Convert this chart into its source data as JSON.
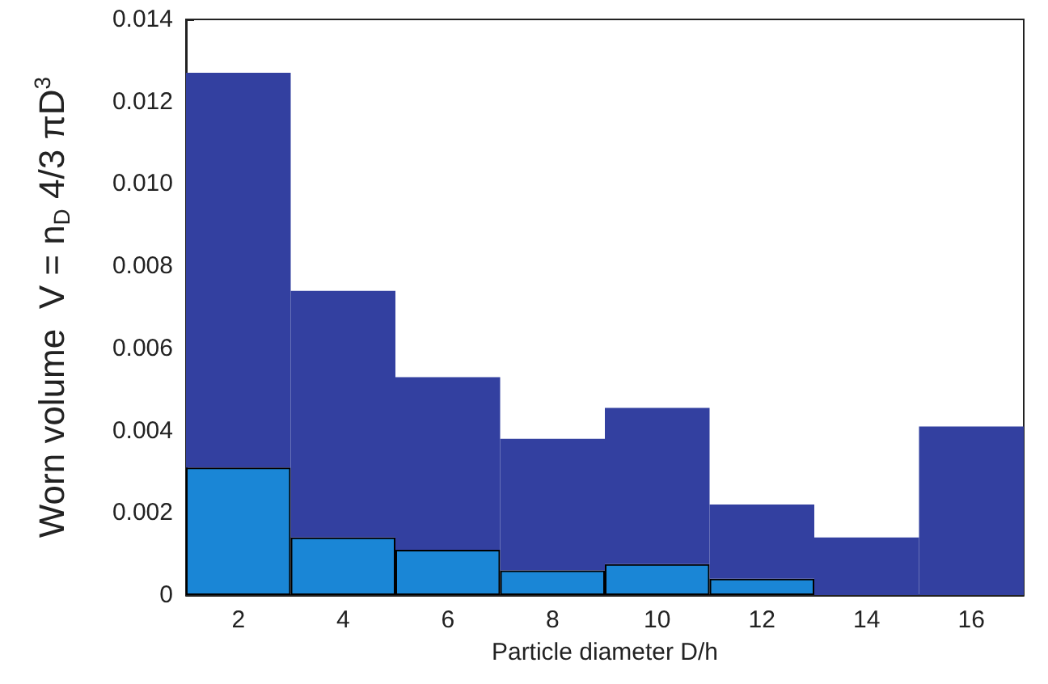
{
  "chart_data": {
    "type": "bar",
    "stacked": true,
    "xlabel": "Particle diameter D/h",
    "ylabel": "Worn volume  V = n$_{D}$ 4/3 πD$^{3}$",
    "categories": [
      "2",
      "4",
      "6",
      "8",
      "10",
      "12",
      "14",
      "16"
    ],
    "series": [
      {
        "color": "#1a86d6",
        "values": [
          0.0031,
          0.0014,
          0.0011,
          0.0006,
          0.00075,
          0.0004,
          null,
          null
        ]
      },
      {
        "color": "#3340a0",
        "values": [
          0.0096,
          0.006,
          0.0042,
          0.0032,
          0.0038,
          0.0018,
          0.0014,
          0.0041
        ]
      }
    ],
    "ylim": [
      0,
      0.014
    ],
    "yticks": [
      0,
      {
        "value": 0.002,
        "label": "0.002"
      },
      {
        "value": 0.004,
        "label": "0.004"
      },
      {
        "value": 0.006,
        "label": "0.006"
      },
      {
        "value": 0.008,
        "label": "0.008"
      },
      {
        "value": 0.01,
        "label": "0.010"
      },
      {
        "value": 0.012,
        "label": "0.012"
      },
      {
        "value": 0.014,
        "label": "0.014"
      }
    ],
    "grid": false
  }
}
